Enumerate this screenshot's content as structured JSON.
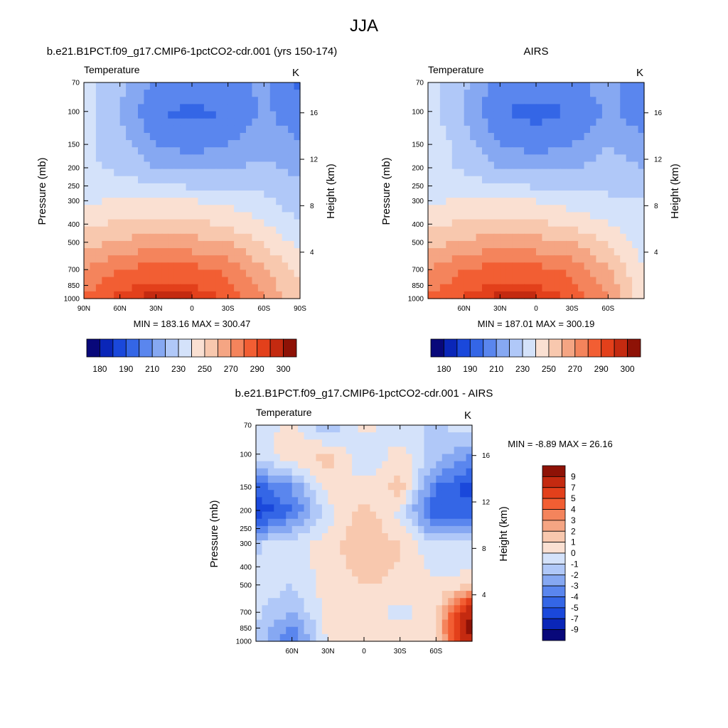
{
  "figure": {
    "title": "JJA"
  },
  "palettes": {
    "abs": [
      "#08087a",
      "#0a26b8",
      "#1a48db",
      "#3466e6",
      "#5a86ee",
      "#86a8f2",
      "#b0c8f8",
      "#d4e2fa",
      "#fae0d2",
      "#f8c8ae",
      "#f5a583",
      "#f4845c",
      "#f25e33",
      "#e3401b",
      "#c42a10",
      "#8e1206"
    ],
    "diff": [
      "#08087a",
      "#0a26b8",
      "#1a48db",
      "#3466e6",
      "#5a86ee",
      "#86a8f2",
      "#b0c8f8",
      "#d4e2fa",
      "#fae0d2",
      "#f8c8ae",
      "#f5a583",
      "#f4845c",
      "#f25e33",
      "#e3401b",
      "#c42a10",
      "#8e1206"
    ]
  },
  "colorbar_abs": {
    "labels": [
      "180",
      "190",
      "210",
      "230",
      "250",
      "270",
      "290",
      "300"
    ]
  },
  "colorbar_diff": {
    "labels": [
      "9",
      "7",
      "5",
      "4",
      "3",
      "2",
      "1",
      "0",
      "-1",
      "-2",
      "-3",
      "-4",
      "-5",
      "-7",
      "-9"
    ]
  },
  "panels": {
    "model": {
      "title": "b.e21.B1PCT.f09_g17.CMIP6-1pctCO2-cdr.001 (yrs 150-174)",
      "var_label": "Temperature",
      "units": "K",
      "stats": "MIN = 183.16   MAX = 300.47",
      "ylabel": "Pressure (mb)",
      "y2label": "Height (km)"
    },
    "obs": {
      "title": "AIRS",
      "var_label": "Temperature",
      "units": "K",
      "stats": "MIN = 187.01   MAX = 300.19",
      "ylabel": "Pressure (mb)",
      "y2label": "Height (km)"
    },
    "diff": {
      "title": "b.e21.B1PCT.f09_g17.CMIP6-1pctCO2-cdr.001 - AIRS",
      "var_label": "Temperature",
      "units": "K",
      "stats": "MIN =  -8.89  MAX =  26.16",
      "ylabel": "Pressure (mb)",
      "y2label": "Height (km)"
    }
  },
  "chart_data": [
    {
      "type": "heatmap",
      "title": "b.e21.B1PCT.f09_g17.CMIP6-1pctCO2-cdr.001 (yrs 150-174)",
      "xlabel": "",
      "ylabel": "Pressure (mb)",
      "y2label": "Height (km)",
      "x_ticks": [
        "90N",
        "60N",
        "30N",
        "0",
        "30S",
        "60S",
        "90S"
      ],
      "y_ticks": [
        "70",
        "100",
        "150",
        "200",
        "250",
        "300",
        "400",
        "500",
        "700",
        "850",
        "1000"
      ],
      "y2_ticks": [
        "4",
        "8",
        "12",
        "16"
      ],
      "x": [
        90,
        60,
        30,
        0,
        -30,
        -60,
        -90
      ],
      "y": [
        70,
        100,
        150,
        200,
        300,
        500,
        700,
        850,
        1000
      ],
      "z": [
        [
          235,
          222,
          208,
          206,
          208,
          212,
          198
        ],
        [
          235,
          220,
          200,
          198,
          200,
          212,
          202
        ],
        [
          232,
          225,
          210,
          206,
          210,
          218,
          212
        ],
        [
          232,
          228,
          220,
          218,
          220,
          222,
          218
        ],
        [
          238,
          242,
          242,
          240,
          238,
          232,
          224
        ],
        [
          256,
          262,
          266,
          264,
          260,
          248,
          238
        ],
        [
          270,
          280,
          285,
          284,
          278,
          262,
          248
        ],
        [
          276,
          287,
          292,
          290,
          283,
          266,
          250
        ],
        [
          282,
          293,
          299,
          297,
          288,
          270,
          250
        ]
      ],
      "min": 183.16,
      "max": 300.47,
      "units": "K",
      "levels": [
        180,
        185,
        190,
        200,
        210,
        220,
        230,
        240,
        250,
        260,
        270,
        280,
        290,
        295,
        300
      ]
    },
    {
      "type": "heatmap",
      "title": "AIRS",
      "xlabel": "",
      "ylabel": "Pressure (mb)",
      "y2label": "Height (km)",
      "x_ticks": [
        "60N",
        "30N",
        "0",
        "30S",
        "60S"
      ],
      "y_ticks": [
        "70",
        "100",
        "150",
        "200",
        "250",
        "300",
        "400",
        "500",
        "700",
        "850",
        "1000"
      ],
      "y2_ticks": [
        "4",
        "8",
        "12",
        "16"
      ],
      "x": [
        90,
        60,
        30,
        0,
        -30,
        -60,
        -90
      ],
      "y": [
        70,
        100,
        150,
        200,
        300,
        500,
        700,
        850,
        1000
      ],
      "z": [
        [
          236,
          222,
          206,
          204,
          208,
          214,
          202
        ],
        [
          235,
          219,
          200,
          197,
          200,
          212,
          204
        ],
        [
          238,
          226,
          210,
          206,
          210,
          220,
          214
        ],
        [
          236,
          228,
          220,
          218,
          220,
          224,
          220
        ],
        [
          238,
          242,
          242,
          240,
          236,
          232,
          230
        ],
        [
          256,
          262,
          266,
          264,
          260,
          248,
          236
        ],
        [
          270,
          280,
          285,
          284,
          278,
          262,
          240
        ],
        [
          276,
          286,
          292,
          290,
          283,
          266,
          242
        ],
        [
          282,
          292,
          298,
          297,
          288,
          270,
          244
        ]
      ],
      "min": 187.01,
      "max": 300.19,
      "units": "K",
      "levels": [
        180,
        185,
        190,
        200,
        210,
        220,
        230,
        240,
        250,
        260,
        270,
        280,
        290,
        295,
        300
      ]
    },
    {
      "type": "heatmap",
      "title": "b.e21.B1PCT.f09_g17.CMIP6-1pctCO2-cdr.001 - AIRS",
      "xlabel": "",
      "ylabel": "Pressure (mb)",
      "y2label": "Height (km)",
      "x_ticks": [
        "60N",
        "30N",
        "0",
        "30S",
        "60S"
      ],
      "y_ticks": [
        "70",
        "100",
        "150",
        "200",
        "250",
        "300",
        "400",
        "500",
        "700",
        "850",
        "1000"
      ],
      "y2_ticks": [
        "4",
        "8",
        "12",
        "16"
      ],
      "x": [
        90,
        60,
        30,
        0,
        -30,
        -60,
        -90
      ],
      "y": [
        70,
        100,
        150,
        200,
        300,
        500,
        700,
        850,
        1000
      ],
      "z": [
        [
          -0.5,
          0.3,
          -2.2,
          0.4,
          -0.6,
          -1.2,
          -0.4
        ],
        [
          -0.5,
          0.6,
          1.5,
          -1.0,
          0.5,
          -1.5,
          -3.0
        ],
        [
          -4.5,
          -3.0,
          0.5,
          0.3,
          1.5,
          -4.0,
          -5.5
        ],
        [
          -6.0,
          -4.0,
          -0.5,
          1.5,
          -0.3,
          -5.0,
          -4.5
        ],
        [
          -1.2,
          -0.4,
          0.5,
          2.0,
          1.0,
          -1.0,
          -1.0
        ],
        [
          -0.4,
          -1.0,
          0.5,
          1.0,
          0.8,
          0.4,
          0.6
        ],
        [
          -0.8,
          -2.0,
          0.5,
          0.5,
          -0.5,
          0.5,
          9.5
        ],
        [
          -1.0,
          -3.5,
          0.4,
          0.4,
          0.5,
          1.0,
          10.0
        ],
        [
          -1.5,
          -4.0,
          0.3,
          0.2,
          0.4,
          0.8,
          9.0
        ]
      ],
      "min": -8.89,
      "max": 26.16,
      "units": "K",
      "levels": [
        -9,
        -7,
        -5,
        -4,
        -3,
        -2,
        -1,
        0,
        1,
        2,
        3,
        4,
        5,
        7,
        9
      ]
    }
  ]
}
